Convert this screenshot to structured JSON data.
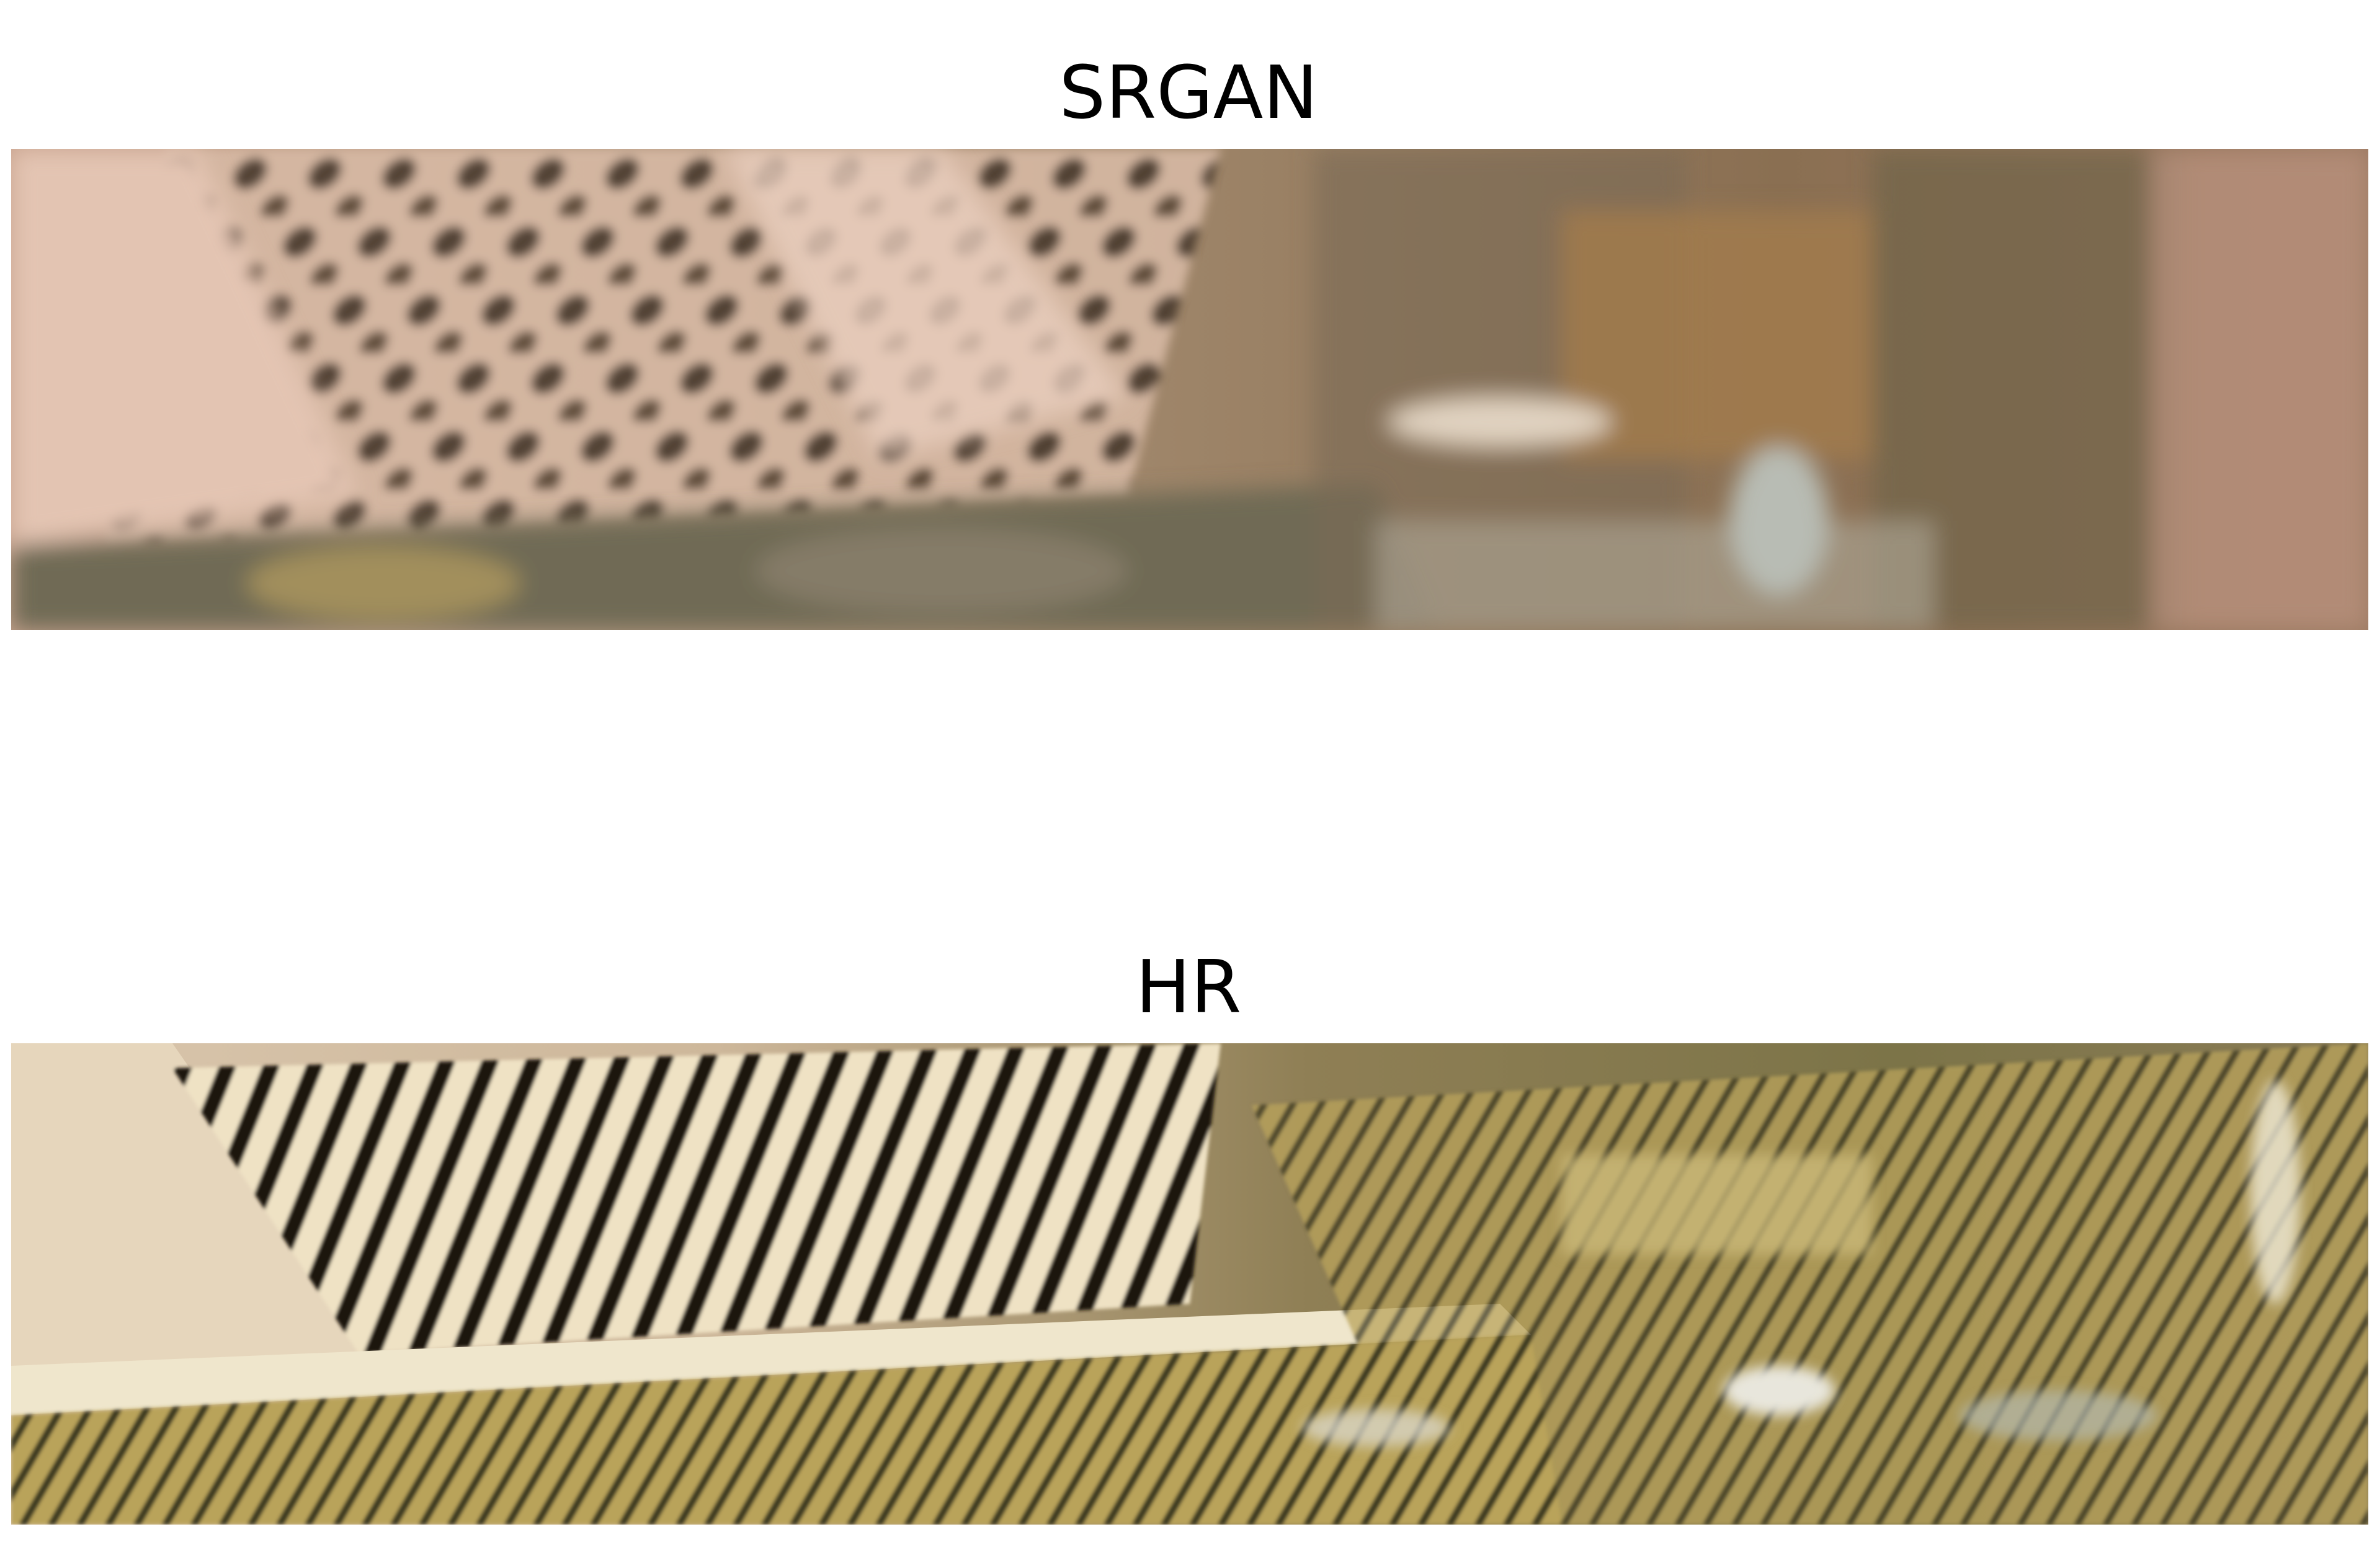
{
  "panels": [
    {
      "title": "SRGAN",
      "image": "srgan-crop"
    },
    {
      "title": "HR",
      "image": "hr-crop"
    }
  ]
}
